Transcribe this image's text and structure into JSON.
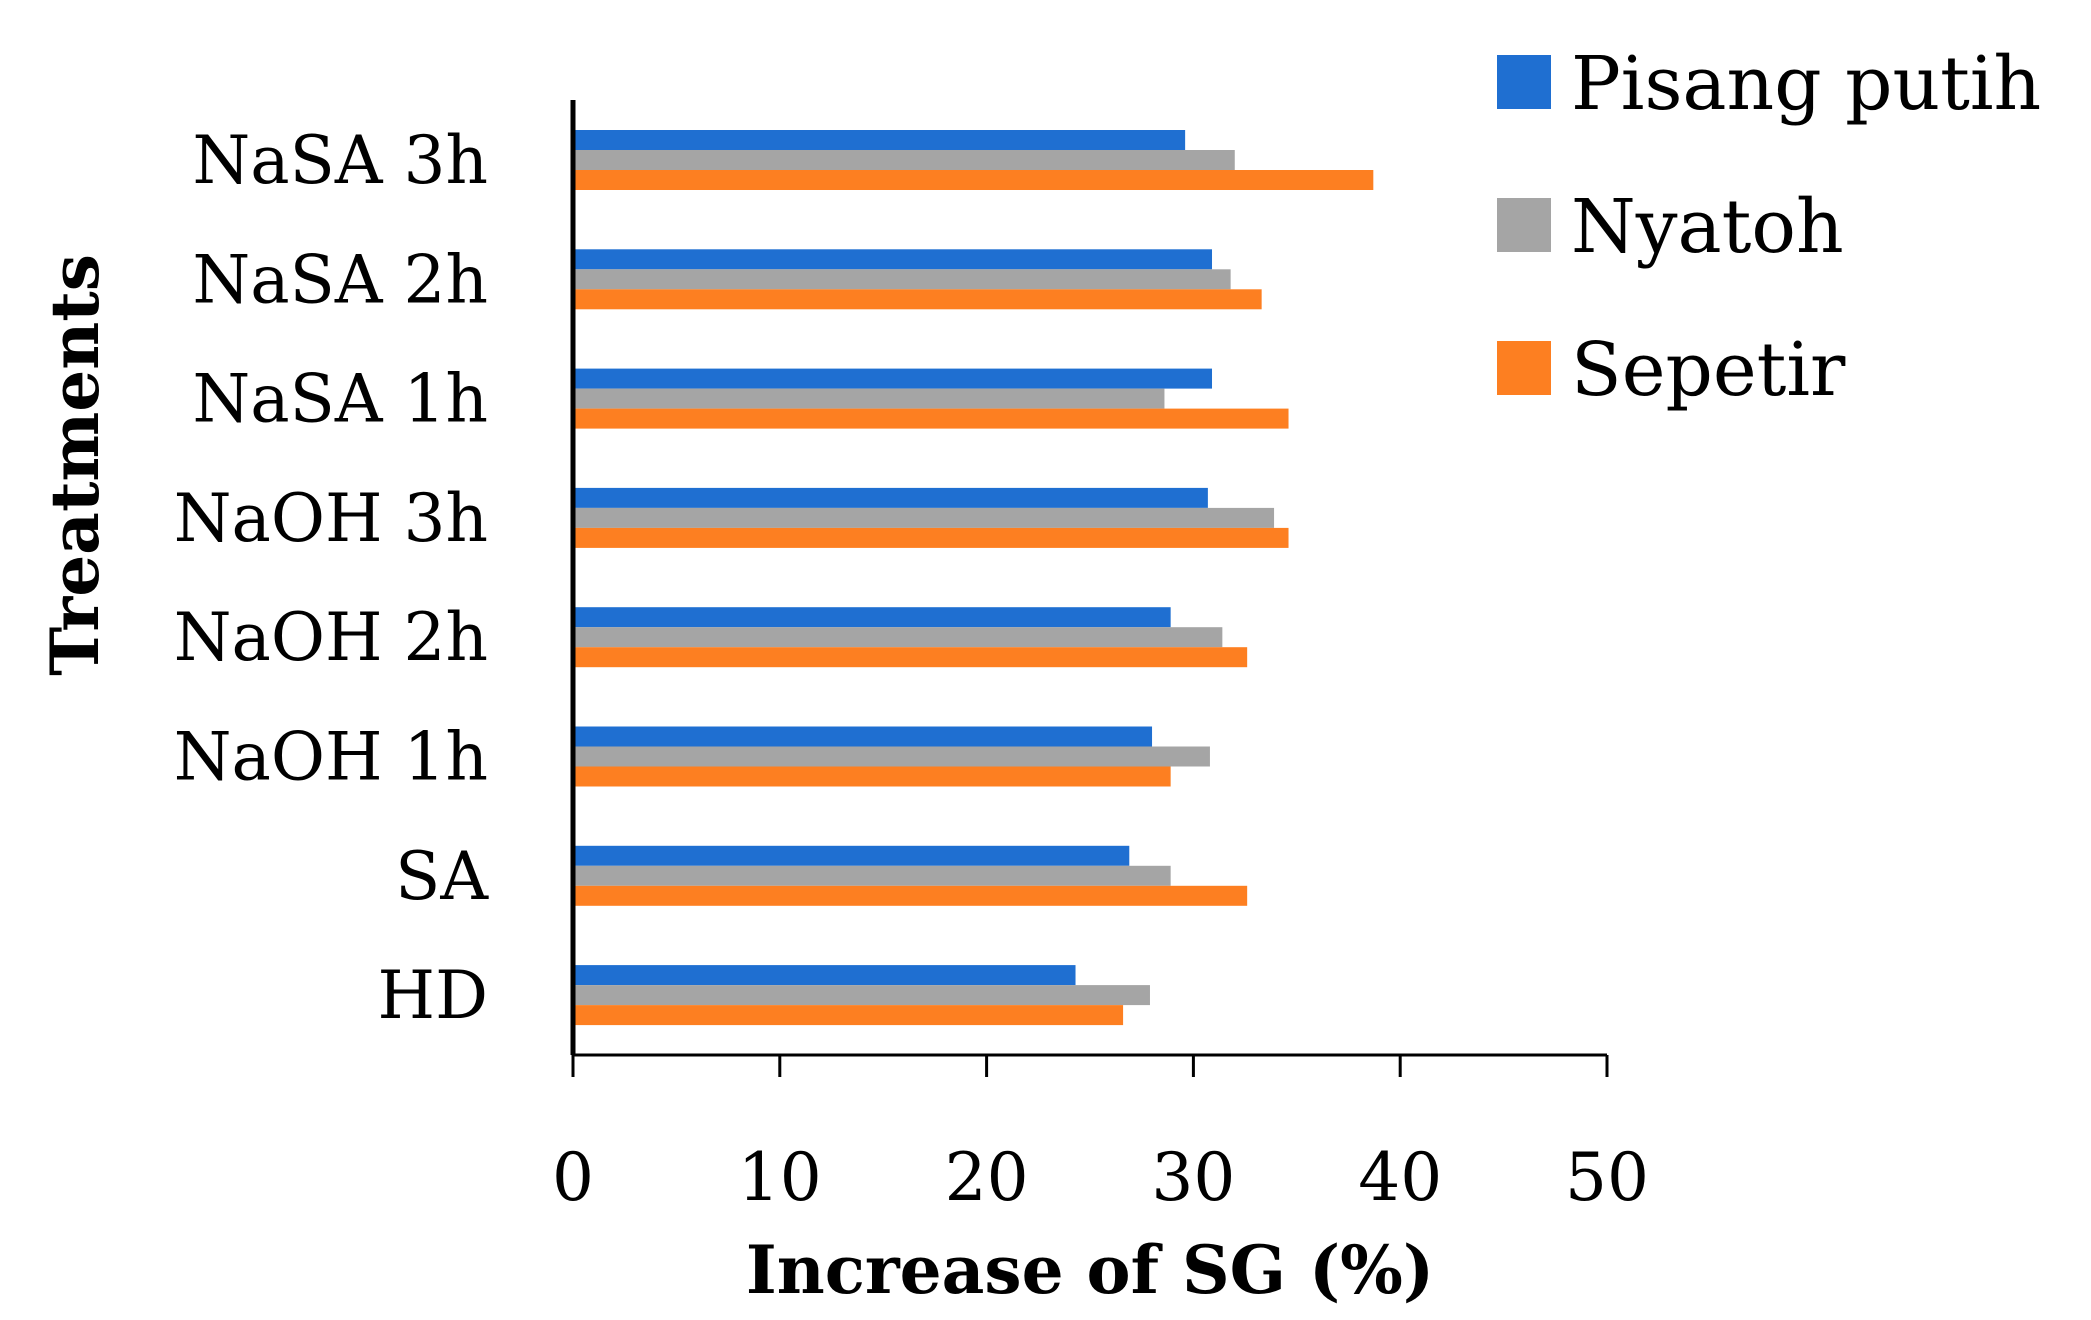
{
  "chart_data": {
    "type": "bar",
    "orientation": "horizontal",
    "title": "",
    "xlabel": "Increase of SG (%)",
    "ylabel": "Treatments",
    "xlim": [
      0,
      50
    ],
    "xticks": [
      "0",
      "10",
      "20",
      "30",
      "40",
      "50"
    ],
    "categories": [
      "NaSA 3h",
      "NaSA 2h",
      "NaSA 1h",
      "NaOH 3h",
      "NaOH 2h",
      "NaOH 1h",
      "SA",
      "HD"
    ],
    "series": [
      {
        "name": "Pisang putih",
        "color": "#1f6fd1",
        "values": [
          29.6,
          30.9,
          30.9,
          30.7,
          28.9,
          28.0,
          26.9,
          24.3
        ]
      },
      {
        "name": "Nyatoh",
        "color": "#a5a5a5",
        "values": [
          32.0,
          31.8,
          28.6,
          33.9,
          31.4,
          30.8,
          28.9,
          27.9
        ]
      },
      {
        "name": "Sepetir",
        "color": "#fd7f21",
        "values": [
          38.7,
          33.3,
          34.6,
          34.6,
          32.6,
          28.9,
          32.6,
          26.6
        ]
      }
    ],
    "grid": false,
    "legend": "top-right"
  }
}
